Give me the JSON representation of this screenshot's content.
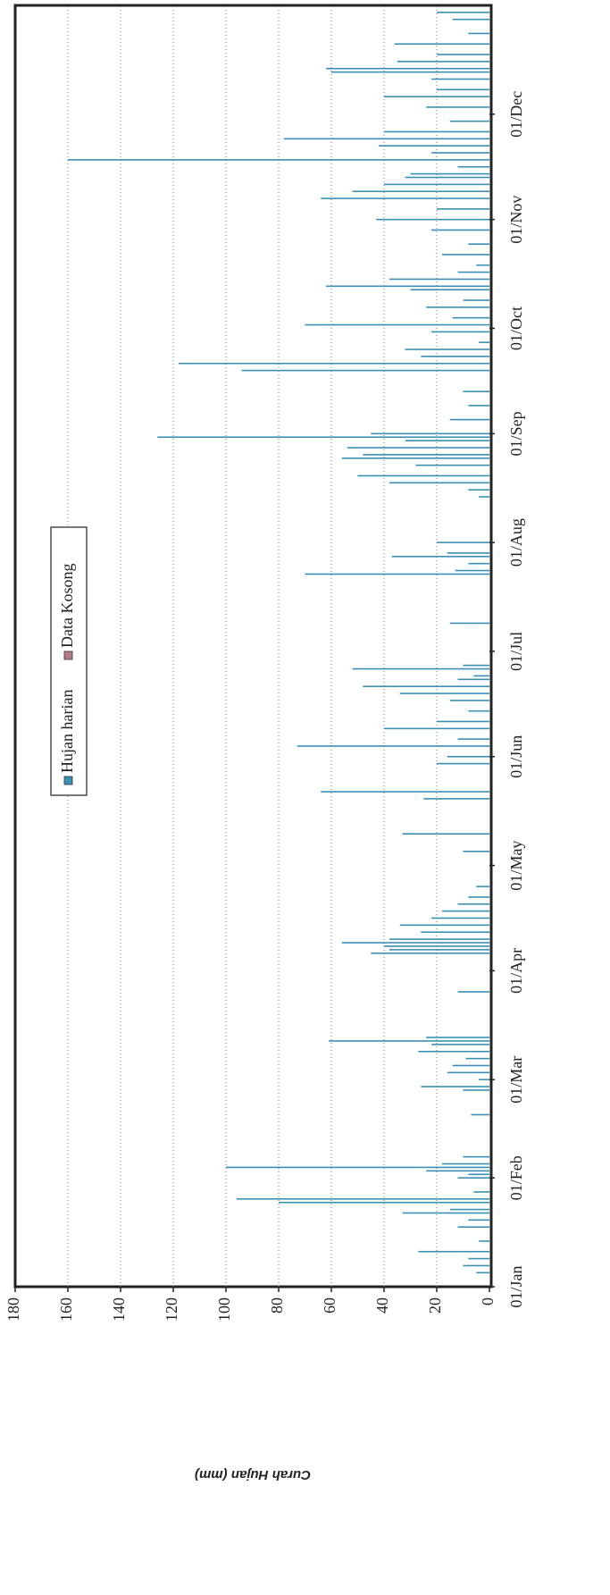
{
  "chart_data": {
    "type": "bar",
    "y_label": "Curah Hujan (mm)",
    "xlim": [
      1,
      366
    ],
    "xticks": [
      {
        "value": 1,
        "label": "01/Jan"
      },
      {
        "value": 32,
        "label": "01/Feb"
      },
      {
        "value": 60,
        "label": "01/Mar"
      },
      {
        "value": 91,
        "label": "01/Apr"
      },
      {
        "value": 121,
        "label": "01/May"
      },
      {
        "value": 152,
        "label": "01/Jun"
      },
      {
        "value": 182,
        "label": "01/Jul"
      },
      {
        "value": 213,
        "label": "01/Aug"
      },
      {
        "value": 244,
        "label": "01/Sep"
      },
      {
        "value": 274,
        "label": "01/Oct"
      },
      {
        "value": 305,
        "label": "01/Nov"
      },
      {
        "value": 335,
        "label": "01/Dec"
      }
    ],
    "ylim": [
      0,
      180
    ],
    "yticks": [
      0,
      20,
      40,
      60,
      80,
      100,
      120,
      140,
      160,
      180
    ],
    "grid": true,
    "series": [
      {
        "name": "Hujan harian",
        "color": "#3b8fb3",
        "x": [
          5,
          7,
          9,
          11,
          14,
          18,
          20,
          22,
          23,
          25,
          26,
          28,
          32,
          33,
          34,
          35,
          36,
          38,
          50,
          57,
          58,
          60,
          62,
          64,
          66,
          68,
          70,
          71,
          72,
          85,
          96,
          97,
          98,
          99,
          100,
          102,
          104,
          106,
          108,
          110,
          112,
          115,
          125,
          130,
          140,
          142,
          150,
          152,
          155,
          157,
          160,
          162,
          165,
          168,
          170,
          172,
          174,
          175,
          177,
          178,
          190,
          204,
          205,
          207,
          209,
          210,
          213,
          226,
          228,
          230,
          232,
          235,
          237,
          238,
          240,
          242,
          243,
          244,
          248,
          252,
          256,
          262,
          264,
          266,
          268,
          270,
          273,
          275,
          277,
          280,
          282,
          285,
          286,
          288,
          290,
          292,
          295,
          298,
          302,
          305,
          308,
          311,
          313,
          315,
          317,
          318,
          320,
          322,
          324,
          326,
          328,
          330,
          333,
          337,
          340,
          342,
          345,
          347,
          348,
          350,
          352,
          355,
          358,
          362,
          364
        ],
        "values": [
          5,
          10,
          8,
          27,
          4,
          12,
          8,
          33,
          15,
          80,
          96,
          6,
          12,
          8,
          24,
          100,
          18,
          10,
          7,
          10,
          26,
          4,
          16,
          14,
          9,
          27,
          22,
          61,
          24,
          12,
          45,
          38,
          40,
          56,
          38,
          26,
          34,
          22,
          18,
          12,
          8,
          5,
          10,
          33,
          25,
          64,
          20,
          16,
          73,
          12,
          40,
          20,
          8,
          15,
          34,
          48,
          12,
          6,
          52,
          10,
          15,
          70,
          13,
          8,
          37,
          16,
          20,
          4,
          8,
          38,
          50,
          28,
          56,
          48,
          54,
          32,
          126,
          45,
          15,
          8,
          10,
          94,
          118,
          26,
          32,
          4,
          22,
          70,
          14,
          24,
          10,
          30,
          62,
          38,
          12,
          5,
          18,
          8,
          22,
          43,
          20,
          64,
          52,
          40,
          32,
          30,
          12,
          160,
          22,
          42,
          78,
          40,
          15,
          24,
          40,
          20,
          22,
          60,
          62,
          35,
          20,
          36,
          8,
          14,
          20
        ]
      },
      {
        "name": "Data Kosong",
        "color": "#b47c84",
        "x": [],
        "values": []
      }
    ],
    "legend": "top-center"
  }
}
